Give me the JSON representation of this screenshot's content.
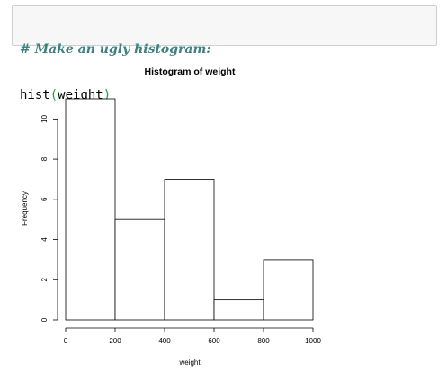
{
  "code_cell": {
    "comment": "# Make an ugly histogram:",
    "code_fn": "hist",
    "code_open": "(",
    "code_arg": "weight",
    "code_close": ")"
  },
  "chart_data": {
    "type": "bar",
    "title": "Histogram of weight",
    "xlabel": "weight",
    "ylabel": "Frequency",
    "bins": [
      {
        "from": 0,
        "to": 200,
        "count": 11
      },
      {
        "from": 200,
        "to": 400,
        "count": 5
      },
      {
        "from": 400,
        "to": 600,
        "count": 7
      },
      {
        "from": 600,
        "to": 800,
        "count": 1
      },
      {
        "from": 800,
        "to": 1000,
        "count": 3
      }
    ],
    "x_ticks": [
      0,
      200,
      400,
      600,
      800,
      1000
    ],
    "y_ticks": [
      0,
      2,
      4,
      6,
      8,
      10
    ],
    "xlim": [
      0,
      1000
    ],
    "ylim": [
      0,
      11
    ],
    "grid": false,
    "colors": {
      "bar_fill": "#ffffff",
      "bar_stroke": "#000000"
    }
  }
}
